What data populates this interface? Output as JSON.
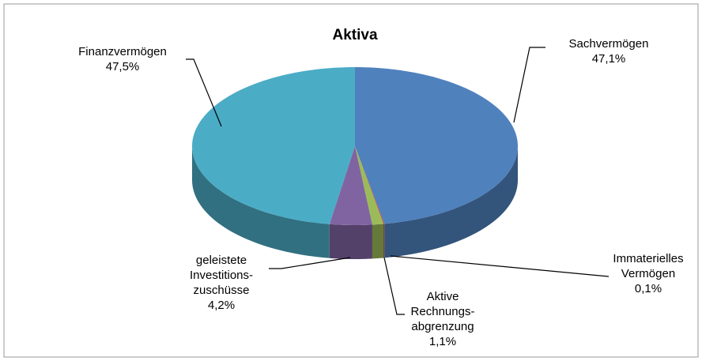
{
  "chart_data": {
    "type": "pie",
    "title": "Aktiva",
    "categories": [
      "Sachvermögen",
      "Immaterielles\nVermögen",
      "Aktive\nRechnungs-\nabgrenzung",
      "geleistete\nInvestitions-\nzuschüsse",
      "Finanzvermögen"
    ],
    "values": [
      47.1,
      0.1,
      1.1,
      4.2,
      47.5
    ],
    "value_labels": [
      "47,1%",
      "0,1%",
      "1,1%",
      "4,2%",
      "47,5%"
    ],
    "colors": [
      "#4f81bd",
      "#c0504d",
      "#9bbb59",
      "#8064a2",
      "#4bacc6"
    ]
  }
}
